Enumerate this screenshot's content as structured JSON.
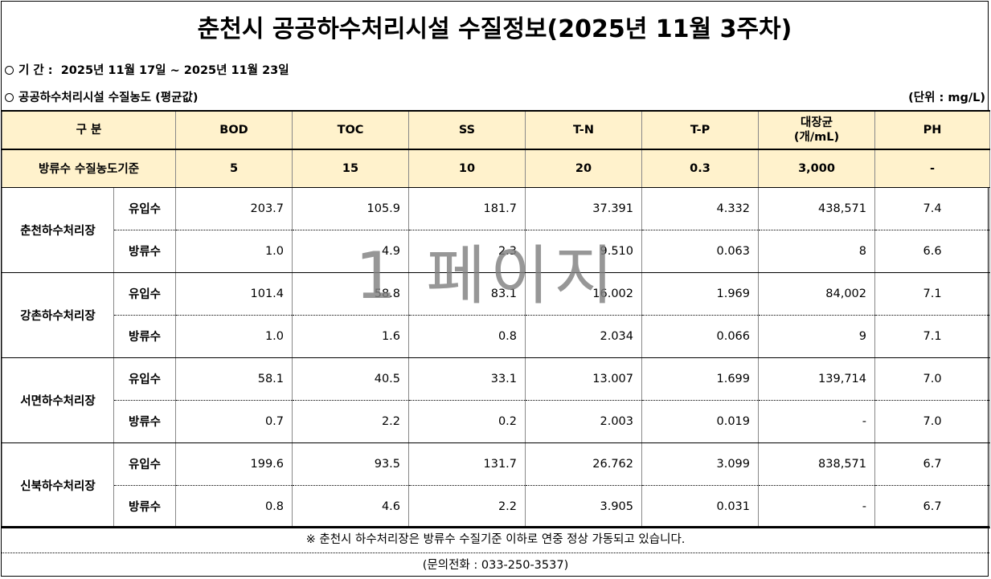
{
  "title": "춘천시 공공하수처리시설 수질정보(2025년 11월 3주차)",
  "period": {
    "label": "기 간 :",
    "value": "2025년 11월 17일 ~ 2025년 11월 23일"
  },
  "section": {
    "label": "공공하수처리시설 수질농도 (평균값)",
    "unit": "(단위 : mg/L)"
  },
  "table": {
    "header": {
      "category": "구 분",
      "columns": [
        "BOD",
        "TOC",
        "SS",
        "T-N",
        "T-P",
        "대장균\n(개/mL)",
        "PH"
      ],
      "coliform_line1": "대장균",
      "coliform_line2": "(개/mL)"
    },
    "standard": {
      "label": "방류수 수질농도기준",
      "values": [
        "5",
        "15",
        "10",
        "20",
        "0.3",
        "3,000",
        "-"
      ]
    },
    "plants": [
      {
        "name": "춘천하수처리장",
        "rows": [
          {
            "type": "유입수",
            "values": [
              "203.7",
              "105.9",
              "181.7",
              "37.391",
              "4.332",
              "438,571",
              "7.4"
            ]
          },
          {
            "type": "방류수",
            "values": [
              "1.0",
              "4.9",
              "2.3",
              "9.510",
              "0.063",
              "8",
              "6.6"
            ]
          }
        ]
      },
      {
        "name": "강촌하수처리장",
        "rows": [
          {
            "type": "유입수",
            "values": [
              "101.4",
              "58.8",
              "83.1",
              "16.002",
              "1.969",
              "84,002",
              "7.1"
            ]
          },
          {
            "type": "방류수",
            "values": [
              "1.0",
              "1.6",
              "0.8",
              "2.034",
              "0.066",
              "9",
              "7.1"
            ]
          }
        ]
      },
      {
        "name": "서면하수처리장",
        "rows": [
          {
            "type": "유입수",
            "values": [
              "58.1",
              "40.5",
              "33.1",
              "13.007",
              "1.699",
              "139,714",
              "7.0"
            ]
          },
          {
            "type": "방류수",
            "values": [
              "0.7",
              "2.2",
              "0.2",
              "2.003",
              "0.019",
              "-",
              "7.0"
            ]
          }
        ]
      },
      {
        "name": "신북하수처리장",
        "rows": [
          {
            "type": "유입수",
            "values": [
              "199.6",
              "93.5",
              "131.7",
              "26.762",
              "3.099",
              "838,571",
              "6.7"
            ]
          },
          {
            "type": "방류수",
            "values": [
              "0.8",
              "4.6",
              "2.2",
              "3.905",
              "0.031",
              "-",
              "6.7"
            ]
          }
        ]
      }
    ]
  },
  "notes": {
    "line1": "※ 춘천시 하수처리장은 방류수 수질기준 이하로 연중 정상 가동되고 있습니다.",
    "line2": "(문의전화 : 033-250-3537)"
  },
  "watermark": "1 페이지"
}
